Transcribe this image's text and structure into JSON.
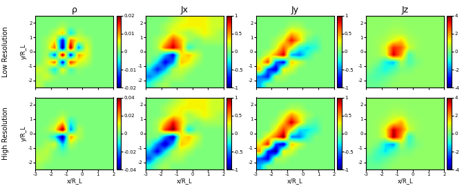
{
  "row_labels": [
    "Low Resolution",
    "High Resolution"
  ],
  "chart_data": [
    {
      "type": "heatmap",
      "title": "ρ",
      "ylabel": "y/R_L",
      "tick_labels": "y",
      "xlim": [
        -3,
        2
      ],
      "ylim": [
        -2.5,
        2.5
      ],
      "xticks": [
        -3,
        -2,
        -1,
        0,
        1,
        2
      ],
      "yticks": [
        -2,
        -1,
        0,
        1,
        2
      ],
      "color_range": [
        -0.02,
        0.02
      ],
      "color_ticks": [
        -0.02,
        -0.01,
        0,
        0.01,
        0.02
      ],
      "cells": [
        [
          0,
          0,
          0,
          0,
          0,
          0,
          0,
          0,
          0,
          0
        ],
        [
          0,
          0,
          0,
          0.002,
          0,
          0,
          0,
          0,
          0,
          0
        ],
        [
          0,
          0,
          0.003,
          0.008,
          -0.006,
          0.002,
          0,
          0,
          0,
          0
        ],
        [
          0,
          0.002,
          0.006,
          -0.016,
          0.012,
          0.005,
          0.003,
          0,
          0,
          0
        ],
        [
          0,
          0.002,
          0.012,
          -0.02,
          0.02,
          -0.01,
          0.005,
          0,
          0,
          0
        ],
        [
          0,
          0.002,
          -0.012,
          0.02,
          -0.016,
          0.01,
          0.005,
          0,
          0,
          0
        ],
        [
          0,
          0.004,
          0.012,
          -0.016,
          0.015,
          0.005,
          0.003,
          0,
          0,
          0
        ],
        [
          0.004,
          0.002,
          -0.006,
          0.006,
          -0.003,
          0.001,
          0,
          0,
          0,
          0
        ],
        [
          0.002,
          0.004,
          0.001,
          0,
          0,
          0,
          0,
          0,
          0,
          0
        ],
        [
          0.003,
          0,
          0,
          0,
          0,
          0,
          0,
          0,
          0,
          0
        ]
      ]
    },
    {
      "type": "heatmap",
      "title": "Jx",
      "tick_labels": "y",
      "xlim": [
        -3,
        2
      ],
      "ylim": [
        -2.5,
        2.5
      ],
      "xticks": [
        -3,
        -2,
        -1,
        0,
        1,
        2
      ],
      "yticks": [
        -2,
        -1,
        0,
        1,
        2
      ],
      "color_range": [
        -1,
        1
      ],
      "color_ticks": [
        -1,
        -0.5,
        0,
        0.5,
        1
      ],
      "cells": [
        [
          0,
          0,
          0,
          0.1,
          0.2,
          0.3,
          0.3,
          0.3,
          0.2,
          0.2
        ],
        [
          0,
          0,
          0.1,
          0.2,
          0.3,
          0.3,
          0.3,
          0.3,
          0.2,
          0.2
        ],
        [
          0,
          0,
          0.1,
          0.3,
          0.2,
          0.1,
          0.2,
          0.3,
          0.2,
          0.1
        ],
        [
          0,
          0.1,
          0.3,
          0.7,
          0.4,
          0.1,
          0,
          0.1,
          0.1,
          0.1
        ],
        [
          0,
          0.1,
          0.6,
          0.9,
          0.5,
          -0.2,
          0,
          0,
          0,
          0
        ],
        [
          0,
          0,
          -0.4,
          -0.8,
          0.3,
          0.4,
          0.2,
          0,
          0,
          0
        ],
        [
          0,
          -0.3,
          -0.8,
          -0.5,
          0.4,
          0.3,
          0.1,
          0,
          0,
          0
        ],
        [
          -0.3,
          -0.7,
          -0.4,
          0.1,
          0.2,
          0.1,
          0,
          0,
          0,
          0
        ],
        [
          -0.5,
          -0.3,
          0,
          0.1,
          0.1,
          0,
          0,
          0,
          0,
          0
        ],
        [
          -0.2,
          0,
          0.1,
          0,
          0,
          0,
          0,
          0,
          0,
          0
        ]
      ]
    },
    {
      "type": "heatmap",
      "title": "Jy",
      "tick_labels": "y",
      "xlim": [
        -3,
        2
      ],
      "ylim": [
        -2.5,
        2.5
      ],
      "xticks": [
        -3,
        -2,
        -1,
        0,
        1,
        2
      ],
      "yticks": [
        -2,
        -1,
        0,
        1,
        2
      ],
      "color_range": [
        -1,
        1
      ],
      "color_ticks": [
        -1,
        -0.5,
        0,
        0.5,
        1
      ],
      "cells": [
        [
          0,
          0,
          0,
          0,
          0,
          0,
          0,
          0,
          0,
          0
        ],
        [
          0,
          0,
          0,
          0,
          0.1,
          0.1,
          0,
          0,
          0,
          0
        ],
        [
          0,
          0,
          0,
          0.1,
          0.4,
          0.3,
          0.1,
          0,
          0,
          0
        ],
        [
          0,
          0,
          0.1,
          0.3,
          0.8,
          0.4,
          0,
          -0.1,
          0,
          0
        ],
        [
          0,
          0,
          0.2,
          0.6,
          0.3,
          -0.2,
          -0.3,
          -0.2,
          0,
          0
        ],
        [
          0,
          0.2,
          0.5,
          0.9,
          -0.4,
          -0.5,
          -0.2,
          0,
          0,
          0
        ],
        [
          0.2,
          0.7,
          -0.5,
          -0.8,
          0.4,
          0.2,
          0,
          0,
          0,
          0
        ],
        [
          0.4,
          -0.6,
          -0.9,
          0.3,
          0.2,
          0,
          0,
          0,
          0,
          0
        ],
        [
          -0.5,
          -0.7,
          0.1,
          0.1,
          0,
          0,
          0,
          0,
          0,
          0
        ],
        [
          -0.4,
          0,
          0,
          0,
          0,
          0,
          0,
          0,
          0,
          0
        ]
      ]
    },
    {
      "type": "heatmap",
      "title": "Jz",
      "tick_labels": "y",
      "xlim": [
        -3,
        2
      ],
      "ylim": [
        -2.5,
        2.5
      ],
      "xticks": [
        -3,
        -2,
        -1,
        0,
        1,
        2
      ],
      "yticks": [
        -2,
        -1,
        0,
        1,
        2
      ],
      "color_range": [
        -4,
        4
      ],
      "color_ticks": [
        -4,
        -2,
        0,
        2,
        4
      ],
      "cells": [
        [
          0.2,
          0.2,
          0.2,
          0.2,
          0.2,
          0.2,
          0.2,
          0.2,
          0.2,
          0.2
        ],
        [
          0.2,
          0.2,
          0.2,
          0.3,
          0.3,
          0.2,
          0.2,
          0.2,
          0.2,
          0.2
        ],
        [
          0.2,
          0.2,
          0.3,
          0.5,
          0.5,
          0.3,
          0.2,
          0.2,
          0.2,
          0.2
        ],
        [
          0.2,
          0.3,
          0.5,
          1,
          1.5,
          0.5,
          0.3,
          0.2,
          0.2,
          0.2
        ],
        [
          0.2,
          0.3,
          1,
          3,
          2.5,
          0.8,
          0.3,
          0.2,
          0.2,
          0.2
        ],
        [
          0.2,
          0.3,
          0.8,
          3.5,
          2,
          -0.5,
          0.2,
          0.2,
          0.2,
          0.2
        ],
        [
          0.2,
          0,
          -1,
          -1.5,
          0.5,
          -0.5,
          0,
          0.2,
          0.2,
          0.2
        ],
        [
          0,
          -0.5,
          -1,
          -0.5,
          0,
          0,
          0.2,
          0.2,
          0.2,
          0.2
        ],
        [
          -0.3,
          -0.5,
          -0.3,
          0,
          0.2,
          0.2,
          0.2,
          0.2,
          0.2,
          0.2
        ],
        [
          -0.2,
          -0.2,
          0,
          0.2,
          0.2,
          0.2,
          0.2,
          0.2,
          0.2,
          0.2
        ]
      ]
    },
    {
      "type": "heatmap",
      "xlabel": "x/R_L",
      "ylabel": "y/R_L",
      "xlim": [
        -3,
        2
      ],
      "ylim": [
        -2.5,
        2.5
      ],
      "xticks": [
        -3,
        -2,
        -1,
        0,
        1,
        2
      ],
      "yticks": [
        -2,
        -1,
        0,
        1,
        2
      ],
      "color_range": [
        -0.04,
        0.04
      ],
      "color_ticks": [
        -0.04,
        -0.02,
        0,
        0.02,
        0.04
      ],
      "cells": [
        [
          0,
          0,
          0,
          0,
          0,
          0,
          0,
          0,
          0,
          0
        ],
        [
          0,
          0,
          0,
          0,
          0,
          0,
          0,
          0,
          0,
          0
        ],
        [
          0,
          0,
          0,
          0.004,
          0,
          0,
          0,
          0,
          0,
          0
        ],
        [
          0,
          0,
          0.004,
          0.015,
          -0.01,
          0,
          0,
          0,
          0,
          0
        ],
        [
          0,
          0.002,
          0.01,
          0.04,
          -0.02,
          0.005,
          0,
          0,
          0,
          0
        ],
        [
          0,
          0,
          -0.01,
          -0.04,
          0.02,
          0.005,
          0,
          0,
          0,
          0
        ],
        [
          0,
          0.004,
          0.008,
          -0.015,
          0.006,
          0,
          0,
          0,
          0,
          0
        ],
        [
          0.004,
          0.006,
          0,
          -0.004,
          0,
          0,
          0,
          0,
          0,
          0
        ],
        [
          0.006,
          0.004,
          0,
          0,
          0,
          0,
          0,
          0,
          0,
          0
        ],
        [
          0.003,
          0,
          0,
          0,
          0,
          0,
          0,
          0,
          0,
          0
        ]
      ]
    },
    {
      "type": "heatmap",
      "xlabel": "x/R_L",
      "xlim": [
        -3,
        2
      ],
      "ylim": [
        -2.5,
        2.5
      ],
      "xticks": [
        -3,
        -2,
        -1,
        0,
        1,
        2
      ],
      "yticks": [
        -2,
        -1,
        0,
        1,
        2
      ],
      "color_range": [
        -1,
        1
      ],
      "color_ticks": [
        -1,
        -0.5,
        0,
        0.5,
        1
      ],
      "cells": [
        [
          0,
          0,
          0,
          0.1,
          0.2,
          0.3,
          0.3,
          0.3,
          0.2,
          0.2
        ],
        [
          0,
          0,
          0.1,
          0.2,
          0.3,
          0.3,
          0.3,
          0.3,
          0.2,
          0.2
        ],
        [
          0,
          0,
          0.1,
          0.3,
          0.3,
          0.1,
          0.2,
          0.3,
          0.2,
          0.1
        ],
        [
          0,
          0.1,
          0.4,
          0.8,
          0.4,
          0.1,
          0,
          0.1,
          0.1,
          0.1
        ],
        [
          0,
          0.1,
          0.7,
          1,
          0.4,
          -0.3,
          0,
          0,
          0,
          0
        ],
        [
          0,
          0,
          -0.5,
          -0.9,
          0.3,
          0.4,
          0.2,
          0,
          0,
          0
        ],
        [
          -0.1,
          -0.5,
          -0.9,
          -0.4,
          0.4,
          0.3,
          0.1,
          0,
          0,
          0
        ],
        [
          -0.4,
          -0.8,
          -0.3,
          0.1,
          0.2,
          0.1,
          0,
          0,
          0,
          0
        ],
        [
          -0.6,
          -0.2,
          0,
          0.1,
          0.1,
          0,
          0,
          0,
          0,
          0
        ],
        [
          -0.2,
          0,
          0.1,
          0,
          0,
          0,
          0,
          0,
          0,
          0
        ]
      ]
    },
    {
      "type": "heatmap",
      "xlabel": "x/R_L",
      "xlim": [
        -3,
        2
      ],
      "ylim": [
        -2.5,
        2.5
      ],
      "xticks": [
        -3,
        -2,
        -1,
        0,
        1,
        2
      ],
      "yticks": [
        -2,
        -1,
        0,
        1,
        2
      ],
      "color_range": [
        -1,
        1
      ],
      "color_ticks": [
        -1,
        -0.5,
        0,
        0.5,
        1
      ],
      "cells": [
        [
          0,
          0,
          0,
          0,
          0,
          0,
          0,
          0,
          0,
          0
        ],
        [
          0,
          0,
          0,
          0,
          0.1,
          0.1,
          0,
          0,
          0,
          0
        ],
        [
          0,
          0,
          0,
          0.2,
          0.5,
          0.3,
          0.1,
          0,
          0,
          0
        ],
        [
          0,
          0,
          0.1,
          0.4,
          0.9,
          0.4,
          0,
          -0.1,
          0,
          0
        ],
        [
          0,
          0,
          0.3,
          0.7,
          0.3,
          -0.3,
          -0.3,
          -0.2,
          0,
          0
        ],
        [
          0,
          0.3,
          0.6,
          1,
          -0.5,
          -0.5,
          -0.2,
          0,
          0,
          0
        ],
        [
          0.3,
          0.8,
          -0.6,
          -0.9,
          0.4,
          0.2,
          0,
          0,
          0,
          0
        ],
        [
          0.5,
          -0.7,
          -1,
          0.3,
          0.2,
          0,
          0,
          0,
          0,
          0
        ],
        [
          -0.6,
          -0.8,
          0.1,
          0.1,
          0,
          0,
          0,
          0,
          0,
          0
        ],
        [
          -0.4,
          0,
          0,
          0,
          0,
          0,
          0,
          0,
          0,
          0
        ]
      ]
    },
    {
      "type": "heatmap",
      "xlabel": "x/R_L",
      "xlim": [
        -3,
        2
      ],
      "ylim": [
        -2.5,
        2.5
      ],
      "xticks": [
        -3,
        -2,
        -1,
        0,
        1,
        2
      ],
      "yticks": [
        -2,
        -1,
        0,
        1,
        2
      ],
      "color_range": [
        -4,
        4
      ],
      "color_ticks": [
        -4,
        -2,
        0,
        2,
        4
      ],
      "cells": [
        [
          0.2,
          0.2,
          0.2,
          0.2,
          0.2,
          0.2,
          0.2,
          0.2,
          0.2,
          0.2
        ],
        [
          0.2,
          0.2,
          0.2,
          0.3,
          0.3,
          0.2,
          0.2,
          0.2,
          0.2,
          0.2
        ],
        [
          0.2,
          0.2,
          0.3,
          0.6,
          0.6,
          0.3,
          0.2,
          0.2,
          0.2,
          0.2
        ],
        [
          0.2,
          0.3,
          0.6,
          1.2,
          1.8,
          0.5,
          0.3,
          0.2,
          0.2,
          0.2
        ],
        [
          0.2,
          0.3,
          1.2,
          3.5,
          2.5,
          0.8,
          0.3,
          0.2,
          0.2,
          0.2
        ],
        [
          0.2,
          0.3,
          1,
          3.8,
          2,
          -0.8,
          0.2,
          0.2,
          0.2,
          0.2
        ],
        [
          0.2,
          0,
          -1.2,
          -1.8,
          0.5,
          -0.5,
          0,
          0.2,
          0.2,
          0.2
        ],
        [
          0,
          -0.6,
          -1.2,
          -0.5,
          0,
          0,
          0.2,
          0.2,
          0.2,
          0.2
        ],
        [
          -0.3,
          -0.6,
          -0.3,
          0,
          0.2,
          0.2,
          0.2,
          0.2,
          0.2,
          0.2
        ],
        [
          -0.2,
          -0.2,
          0,
          0.2,
          0.2,
          0.2,
          0.2,
          0.2,
          0.2,
          0.2
        ]
      ]
    }
  ]
}
